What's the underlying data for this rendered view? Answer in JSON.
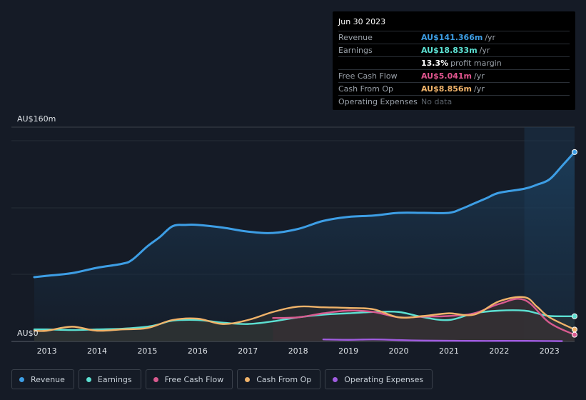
{
  "tooltip": {
    "date": "Jun 30 2023",
    "rows": [
      {
        "label": "Revenue",
        "value": "AU$141.366m",
        "unit": "/yr",
        "color": "#3d9ee5"
      },
      {
        "label": "Earnings",
        "value": "AU$18.833m",
        "unit": "/yr",
        "color": "#5ce0d2"
      },
      {
        "label": "",
        "value": "13.3%",
        "unit": "profit margin",
        "color": "#ffffff"
      },
      {
        "label": "Free Cash Flow",
        "value": "AU$5.041m",
        "unit": "/yr",
        "color": "#e0558e"
      },
      {
        "label": "Cash From Op",
        "value": "AU$8.856m",
        "unit": "/yr",
        "color": "#f0b36a"
      },
      {
        "label": "Operating Expenses",
        "value": "No data",
        "unit": "",
        "color": "#5c636b"
      }
    ]
  },
  "legend": [
    {
      "label": "Revenue",
      "color": "#3d9ee5"
    },
    {
      "label": "Earnings",
      "color": "#5ce0d2"
    },
    {
      "label": "Free Cash Flow",
      "color": "#d95a8f"
    },
    {
      "label": "Cash From Op",
      "color": "#f0b36a"
    },
    {
      "label": "Operating Expenses",
      "color": "#a05ce0"
    }
  ],
  "chart_data": {
    "type": "line",
    "ylabel_top": "AU$160m",
    "ylabel_bottom": "AU$0",
    "ylim": [
      0,
      160
    ],
    "xlim": [
      2012.75,
      2023.5
    ],
    "x_ticks": [
      "2013",
      "2014",
      "2015",
      "2016",
      "2017",
      "2018",
      "2019",
      "2020",
      "2021",
      "2022",
      "2023"
    ],
    "highlight_from": 2022.5,
    "series": [
      {
        "name": "Revenue",
        "color": "#3d9ee5",
        "fill": true,
        "x": [
          2012.75,
          2013.0,
          2013.5,
          2014.0,
          2014.5,
          2014.7,
          2015.0,
          2015.25,
          2015.5,
          2015.75,
          2016.0,
          2016.5,
          2017.0,
          2017.5,
          2018.0,
          2018.5,
          2019.0,
          2019.5,
          2020.0,
          2020.5,
          2021.0,
          2021.25,
          2021.5,
          2021.75,
          2022.0,
          2022.5,
          2022.75,
          2023.0,
          2023.25,
          2023.5
        ],
        "y": [
          48,
          49,
          51,
          55,
          58,
          61,
          71,
          78,
          86,
          87,
          87,
          85,
          82,
          81,
          84,
          90,
          93,
          94,
          96,
          96,
          96,
          99,
          103,
          107,
          111,
          114,
          117,
          121,
          131,
          141.4
        ]
      },
      {
        "name": "Earnings",
        "color": "#5ce0d2",
        "fill": true,
        "x": [
          2012.75,
          2013.0,
          2013.5,
          2014.0,
          2014.5,
          2015.0,
          2015.25,
          2015.5,
          2016.0,
          2016.5,
          2017.0,
          2017.5,
          2018.0,
          2018.5,
          2019.0,
          2019.5,
          2020.0,
          2020.5,
          2021.0,
          2021.5,
          2022.0,
          2022.5,
          2022.75,
          2023.0,
          2023.5
        ],
        "y": [
          9,
          9,
          8.5,
          9,
          9.5,
          11,
          13,
          15.5,
          16,
          14,
          13,
          15,
          18,
          20,
          21,
          22,
          22,
          18,
          16,
          21,
          23,
          23,
          21,
          19,
          18.8
        ]
      },
      {
        "name": "Free Cash Flow",
        "color": "#d95a8f",
        "fill": true,
        "x": [
          2017.5,
          2018.0,
          2018.5,
          2019.0,
          2019.5,
          2020.0,
          2020.5,
          2021.0,
          2021.5,
          2022.0,
          2022.5,
          2023.0,
          2023.5
        ],
        "y": [
          17.5,
          18,
          21,
          23,
          22,
          18,
          18.5,
          19,
          21,
          28,
          31,
          14,
          5.0
        ]
      },
      {
        "name": "Cash From Op",
        "color": "#f0b36a",
        "fill": true,
        "x": [
          2012.75,
          2013.0,
          2013.5,
          2014.0,
          2014.5,
          2015.0,
          2015.5,
          2016.0,
          2016.5,
          2017.0,
          2017.5,
          2018.0,
          2018.5,
          2019.0,
          2019.5,
          2020.0,
          2020.5,
          2021.0,
          2021.5,
          2022.0,
          2022.5,
          2022.75,
          2023.0,
          2023.5
        ],
        "y": [
          8,
          8,
          11,
          8,
          9,
          10,
          16,
          17,
          13,
          16,
          22,
          26,
          25.5,
          25,
          24,
          18,
          19,
          21,
          20,
          30,
          33,
          26,
          18,
          8.9
        ]
      },
      {
        "name": "Operating Expenses",
        "color": "#a05ce0",
        "fill": false,
        "x": [
          2018.5,
          2019.0,
          2019.5,
          2020.0,
          2020.5,
          2021.0,
          2021.5,
          2022.0,
          2022.5,
          2023.0,
          2023.25
        ],
        "y": [
          1.5,
          1.2,
          1.5,
          1.0,
          0.6,
          0.5,
          0.4,
          0.4,
          0.4,
          0.3,
          0.2
        ]
      }
    ]
  }
}
